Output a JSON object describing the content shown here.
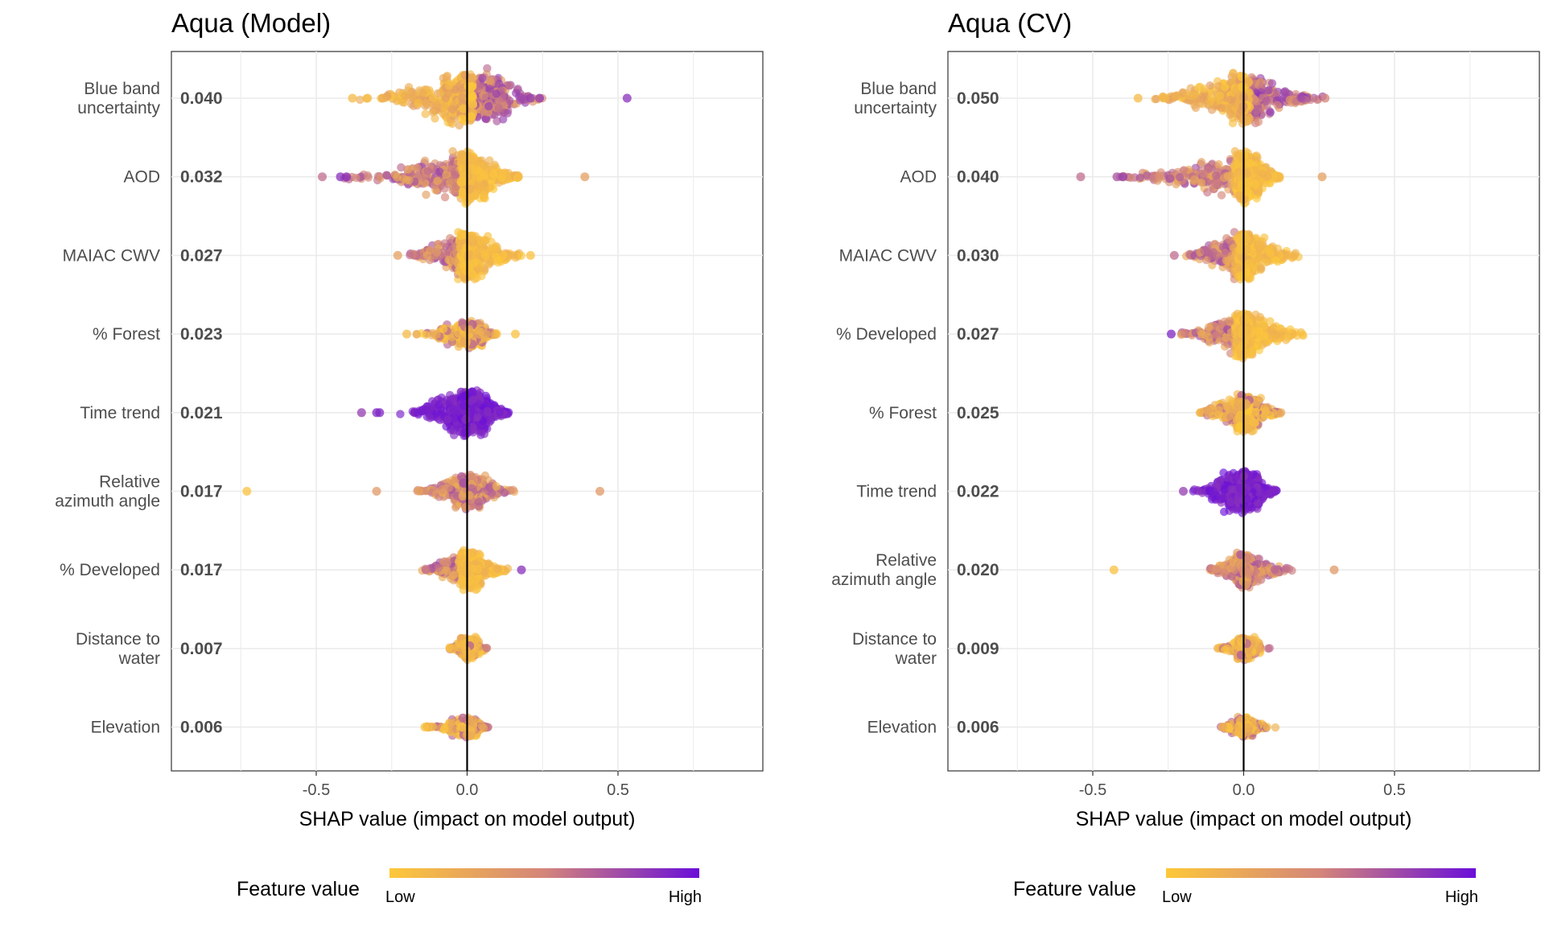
{
  "legend": {
    "title": "Feature value",
    "low": "Low",
    "high": "High"
  },
  "colors": {
    "low": "#fdc83a",
    "mid": "#d4857a",
    "high": "#6a0fd8",
    "axis": "#000000",
    "grid": "#ebebeb",
    "frame": "#333333"
  },
  "chart_data": [
    {
      "type": "scatter",
      "subtype": "shap-beeswarm",
      "title": "Aqua (Model)",
      "xlabel": "SHAP value (impact on model output)",
      "ylabel": "",
      "xlim": [
        -0.98,
        0.98
      ],
      "xticks": [
        -0.5,
        0.0,
        0.5
      ],
      "xtick_labels": [
        "-0.5",
        "0.0",
        "0.5"
      ],
      "grid": true,
      "legend_position": "bottom",
      "features": [
        {
          "name": "Blue band\nuncertainty",
          "mean_abs_shap": "0.040",
          "range": [
            -0.38,
            0.25
          ],
          "core": [
            -0.08,
            0.12
          ],
          "density": 1.0,
          "color_mode": "left_low",
          "outliers": [
            [
              -0.38,
              0.1
            ],
            [
              -0.33,
              0.1
            ],
            [
              -0.28,
              0.2
            ],
            [
              0.53,
              0.85
            ],
            [
              0.24,
              0.8
            ],
            [
              0.21,
              0.8
            ],
            [
              0.18,
              0.75
            ]
          ]
        },
        {
          "name": "AOD",
          "mean_abs_shap": "0.032",
          "range": [
            -0.42,
            0.17
          ],
          "core": [
            -0.05,
            0.06
          ],
          "density": 1.0,
          "color_mode": "left_high",
          "outliers": [
            [
              -0.48,
              0.6
            ],
            [
              -0.42,
              0.85
            ],
            [
              -0.4,
              0.85
            ],
            [
              0.39,
              0.3
            ],
            [
              0.17,
              0.1
            ]
          ]
        },
        {
          "name": "MAIAC CWV",
          "mean_abs_shap": "0.027",
          "range": [
            -0.23,
            0.21
          ],
          "core": [
            -0.04,
            0.04
          ],
          "density": 0.95,
          "color_mode": "left_high",
          "outliers": [
            [
              -0.23,
              0.3
            ],
            [
              0.21,
              0.05
            ]
          ]
        },
        {
          "name": "% Forest",
          "mean_abs_shap": "0.023",
          "range": [
            -0.2,
            0.1
          ],
          "core": [
            -0.03,
            0.05
          ],
          "density": 0.55,
          "color_mode": "mixed_low",
          "outliers": [
            [
              0.16,
              0.05
            ],
            [
              -0.2,
              0.1
            ]
          ]
        },
        {
          "name": "Time trend",
          "mean_abs_shap": "0.021",
          "range": [
            -0.23,
            0.14
          ],
          "core": [
            -0.06,
            0.07
          ],
          "density": 0.9,
          "color_mode": "all_high",
          "outliers": [
            [
              -0.35,
              0.8
            ],
            [
              -0.3,
              0.9
            ],
            [
              -0.29,
              0.9
            ]
          ]
        },
        {
          "name": "Relative\nazimuth angle",
          "mean_abs_shap": "0.017",
          "range": [
            -0.18,
            0.2
          ],
          "core": [
            -0.04,
            0.04
          ],
          "density": 0.7,
          "color_mode": "mixed_mid",
          "outliers": [
            [
              -0.73,
              0.05
            ],
            [
              -0.3,
              0.35
            ],
            [
              0.44,
              0.35
            ]
          ]
        },
        {
          "name": "% Developed",
          "mean_abs_shap": "0.017",
          "range": [
            -0.18,
            0.14
          ],
          "core": [
            -0.02,
            0.04
          ],
          "density": 0.8,
          "color_mode": "left_high",
          "outliers": [
            [
              0.18,
              0.85
            ]
          ]
        },
        {
          "name": "Distance to\nwater",
          "mean_abs_shap": "0.007",
          "range": [
            -0.06,
            0.09
          ],
          "core": [
            -0.02,
            0.03
          ],
          "density": 0.45,
          "color_mode": "mixed_low",
          "outliers": []
        },
        {
          "name": "Elevation",
          "mean_abs_shap": "0.006",
          "range": [
            -0.15,
            0.07
          ],
          "core": [
            -0.03,
            0.03
          ],
          "density": 0.4,
          "color_mode": "mixed_low",
          "outliers": [
            [
              -0.14,
              0.05
            ],
            [
              -0.13,
              0.05
            ]
          ]
        }
      ]
    },
    {
      "type": "scatter",
      "subtype": "shap-beeswarm",
      "title": "Aqua (CV)",
      "xlabel": "SHAP value (impact on model output)",
      "ylabel": "",
      "xlim": [
        -0.98,
        0.98
      ],
      "xticks": [
        -0.5,
        0.0,
        0.5
      ],
      "xtick_labels": [
        "-0.5",
        "0.0",
        "0.5"
      ],
      "grid": true,
      "legend_position": "bottom",
      "features": [
        {
          "name": "Blue band\nuncertainty",
          "mean_abs_shap": "0.050",
          "range": [
            -0.35,
            0.27
          ],
          "core": [
            -0.05,
            0.06
          ],
          "density": 1.0,
          "color_mode": "left_low",
          "outliers": [
            [
              -0.35,
              0.1
            ],
            [
              0.27,
              0.5
            ]
          ]
        },
        {
          "name": "AOD",
          "mean_abs_shap": "0.040",
          "range": [
            -0.42,
            0.12
          ],
          "core": [
            -0.03,
            0.05
          ],
          "density": 1.0,
          "color_mode": "left_high",
          "outliers": [
            [
              -0.54,
              0.6
            ],
            [
              -0.42,
              0.7
            ],
            [
              -0.4,
              0.8
            ],
            [
              0.26,
              0.3
            ]
          ]
        },
        {
          "name": "MAIAC CWV",
          "mean_abs_shap": "0.030",
          "range": [
            -0.23,
            0.22
          ],
          "core": [
            -0.04,
            0.03
          ],
          "density": 0.95,
          "color_mode": "left_high",
          "outliers": [
            [
              -0.23,
              0.6
            ]
          ]
        },
        {
          "name": "% Developed",
          "mean_abs_shap": "0.027",
          "range": [
            -0.24,
            0.25
          ],
          "core": [
            -0.03,
            0.03
          ],
          "density": 0.95,
          "color_mode": "left_high",
          "outliers": [
            [
              -0.24,
              0.9
            ]
          ]
        },
        {
          "name": "% Forest",
          "mean_abs_shap": "0.025",
          "range": [
            -0.19,
            0.13
          ],
          "core": [
            -0.03,
            0.04
          ],
          "density": 0.75,
          "color_mode": "mixed_low",
          "outliers": []
        },
        {
          "name": "Time trend",
          "mean_abs_shap": "0.022",
          "range": [
            -0.2,
            0.11
          ],
          "core": [
            -0.05,
            0.05
          ],
          "density": 0.85,
          "color_mode": "all_high",
          "outliers": [
            [
              -0.2,
              0.8
            ]
          ]
        },
        {
          "name": "Relative\nazimuth angle",
          "mean_abs_shap": "0.020",
          "range": [
            -0.12,
            0.19
          ],
          "core": [
            -0.03,
            0.03
          ],
          "density": 0.7,
          "color_mode": "mixed_mid",
          "outliers": [
            [
              -0.43,
              0.05
            ],
            [
              0.3,
              0.35
            ]
          ]
        },
        {
          "name": "Distance to\nwater",
          "mean_abs_shap": "0.009",
          "range": [
            -0.09,
            0.12
          ],
          "core": [
            -0.02,
            0.03
          ],
          "density": 0.45,
          "color_mode": "mixed_low",
          "outliers": []
        },
        {
          "name": "Elevation",
          "mean_abs_shap": "0.006",
          "range": [
            -0.08,
            0.12
          ],
          "core": [
            -0.02,
            0.03
          ],
          "density": 0.4,
          "color_mode": "mixed_low",
          "outliers": []
        }
      ]
    }
  ]
}
